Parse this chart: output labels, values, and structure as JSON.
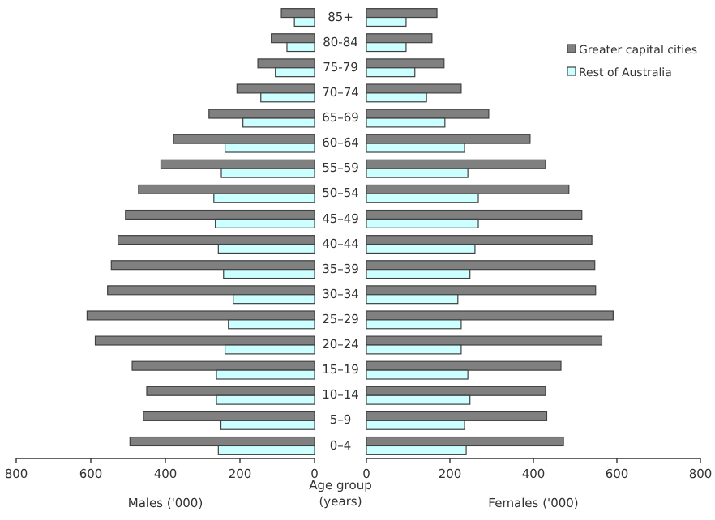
{
  "chart_data": [
    {
      "type": "bar",
      "orientation": "horizontal",
      "xlabel": "Males ('000)",
      "ylabel": "Age group\n(years)",
      "categories": [
        "85+",
        "80-84",
        "75-79",
        "70–74",
        "65–69",
        "60–64",
        "55–59",
        "50–54",
        "45–49",
        "40–44",
        "35–39",
        "30–34",
        "25–29",
        "20–24",
        "15–19",
        "10–14",
        "5–9",
        "0–4"
      ],
      "xlim": [
        800,
        0
      ],
      "xticks": [
        800,
        600,
        400,
        200,
        0
      ],
      "legend": false,
      "series": [
        {
          "color": "#808080",
          "values": [
            89,
            116,
            152,
            208,
            283,
            378,
            412,
            472,
            507,
            527,
            545,
            555,
            610,
            588,
            489,
            450,
            459,
            495
          ]
        },
        {
          "color": "#ccffff",
          "values": [
            54,
            74,
            105,
            144,
            192,
            240,
            250,
            270,
            266,
            258,
            244,
            218,
            231,
            240,
            263,
            263,
            251,
            258
          ]
        }
      ]
    },
    {
      "type": "bar",
      "orientation": "horizontal",
      "xlabel": "Females ('000)",
      "categories": [
        "85+",
        "80-84",
        "75-79",
        "70–74",
        "65–69",
        "60–64",
        "55–59",
        "50–54",
        "45–49",
        "40–44",
        "35–39",
        "30–34",
        "25–29",
        "20–24",
        "15–19",
        "10–14",
        "5–9",
        "0–4"
      ],
      "xlim": [
        0,
        800
      ],
      "xticks": [
        0,
        200,
        400,
        600,
        800
      ],
      "tick_labels": "x",
      "legend": "top right",
      "series": [
        {
          "name": "Greater capital cities",
          "color": "#808080",
          "values": [
            169,
            157,
            186,
            227,
            293,
            392,
            429,
            485,
            516,
            540,
            547,
            549,
            591,
            564,
            466,
            429,
            432,
            472
          ]
        },
        {
          "name": "Rest of Australia",
          "color": "#ccffff",
          "values": [
            95,
            95,
            116,
            144,
            188,
            235,
            243,
            268,
            268,
            260,
            248,
            219,
            227,
            227,
            243,
            248,
            235,
            239
          ]
        }
      ]
    }
  ]
}
